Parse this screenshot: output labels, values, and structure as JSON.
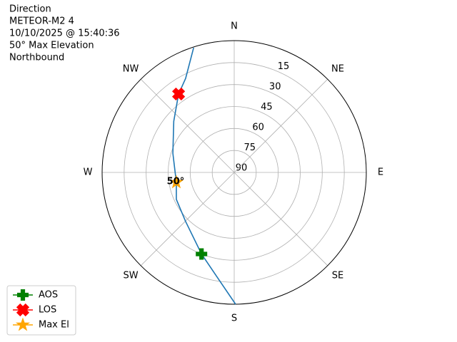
{
  "chart_data": {
    "type": "polar",
    "title_lines": [
      "Direction",
      "METEOR-M2 4",
      "10/10/2025 @ 15:40:36",
      "50° Max Elevation",
      "Northbound"
    ],
    "xlim": [
      0,
      360
    ],
    "xticks": [
      {
        "value": 0,
        "label": "N"
      },
      {
        "value": 45,
        "label": "NE"
      },
      {
        "value": 90,
        "label": "E"
      },
      {
        "value": 135,
        "label": "SE"
      },
      {
        "value": 180,
        "label": "S"
      },
      {
        "value": 225,
        "label": "SW"
      },
      {
        "value": 270,
        "label": "W"
      },
      {
        "value": 315,
        "label": "NW"
      }
    ],
    "ylim": [
      90,
      0
    ],
    "yticks": [
      15,
      30,
      45,
      60,
      75,
      90
    ],
    "grid": true,
    "legend": "lower left",
    "series": [
      {
        "color": "#1f77b4",
        "marker": "line",
        "x": [
          179.4,
          188.8,
          201.8,
          225,
          245,
          260.3,
          287.4,
          310.3,
          324.7,
          332.7,
          342
        ],
        "values": [
          0,
          17,
          30,
          43,
          46.5,
          50,
          46.2,
          36,
          24.4,
          17.8,
          0.5
        ]
      },
      {
        "name": "AOS",
        "color": "#008000",
        "marker": "plus",
        "x": [
          201.8
        ],
        "values": [
          30
        ]
      },
      {
        "name": "LOS",
        "color": "#ff0000",
        "marker": "x",
        "x": [
          324.7
        ],
        "values": [
          24.4
        ]
      },
      {
        "name": "Max El",
        "color": "#ffa500",
        "marker": "star",
        "x": [
          260.3
        ],
        "values": [
          50
        ]
      }
    ],
    "annotations": [
      {
        "text": "50°",
        "x": 260.3,
        "value": 50
      }
    ]
  }
}
